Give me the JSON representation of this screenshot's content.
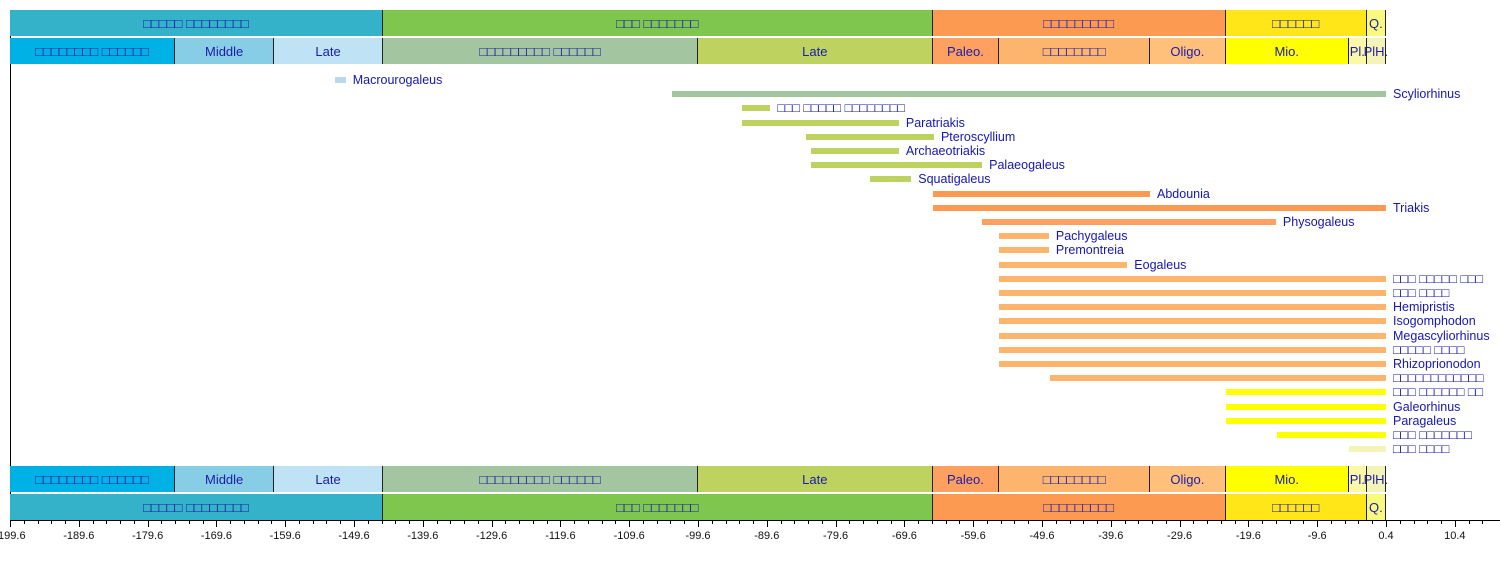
{
  "chart_data": {
    "type": "timeline",
    "title": "",
    "xlabel": "",
    "ylabel": "",
    "xlim": [
      -199.6,
      16.4
    ],
    "ticks": [
      -199.6,
      -189.6,
      -179.6,
      -169.6,
      -159.6,
      -149.6,
      -139.6,
      -129.6,
      -119.6,
      -109.6,
      -99.6,
      -89.6,
      -79.6,
      -69.6,
      -59.6,
      -49.6,
      -39.6,
      -29.6,
      -19.6,
      -9.6,
      0.4,
      10.4
    ],
    "periods": [
      {
        "label": "□□□□□ □□□□□□□□",
        "start": -199.6,
        "end": -145.4,
        "color": "#34b2c9"
      },
      {
        "label": "□□□ □□□□□□□",
        "start": -145.4,
        "end": -65.5,
        "color": "#7fc64e"
      },
      {
        "label": "□□□□□□□□□",
        "start": -65.5,
        "end": -22.9,
        "color": "#fd9a52"
      },
      {
        "label": "□□□□□□",
        "start": -22.9,
        "end": -2.4,
        "color": "#ffe619"
      },
      {
        "label": "Q.",
        "start": -2.4,
        "end": 0.4,
        "color": "#f9f97f"
      }
    ],
    "epochs": [
      {
        "label": "□□□□□□□□ □□□□□□",
        "start": -199.6,
        "end": -175.6,
        "color": "#00b1e6"
      },
      {
        "label": "Middle",
        "start": -175.6,
        "end": -161.2,
        "color": "#87cde6"
      },
      {
        "label": "Late",
        "start": -161.2,
        "end": -145.4,
        "color": "#bfe2f4"
      },
      {
        "label": "□□□□□□□□□ □□□□□□",
        "start": -145.4,
        "end": -99.6,
        "color": "#a3c6a1"
      },
      {
        "label": "Late",
        "start": -99.6,
        "end": -65.5,
        "color": "#bed260"
      },
      {
        "label": "Paleo.",
        "start": -65.5,
        "end": -55.8,
        "color": "#fda060"
      },
      {
        "label": "□□□□□□□□",
        "start": -55.8,
        "end": -33.9,
        "color": "#fdb46c"
      },
      {
        "label": "Oligo.",
        "start": -33.9,
        "end": -22.9,
        "color": "#fec07a"
      },
      {
        "label": "Mio.",
        "start": -22.9,
        "end": -5.0,
        "color": "#ffff00"
      },
      {
        "label": "Pl.",
        "start": -5.0,
        "end": -2.4,
        "color": "#fbf8a8"
      },
      {
        "label": "PlH.",
        "start": -2.4,
        "end": 0.4,
        "color": "#f4f4b8"
      }
    ],
    "taxa": [
      {
        "name": "Macrourogaleus",
        "start": -152.4,
        "end": -150.8,
        "color": "#bcd9ec"
      },
      {
        "name": "Scyliorhinus",
        "start": -103.4,
        "end": 0.4,
        "color": "#a3c6a1"
      },
      {
        "name": "□□□ □□□□□ □□□□□□□□",
        "start": -93.2,
        "end": -89.1,
        "color": "#bed260"
      },
      {
        "name": "Paratriakis",
        "start": -93.2,
        "end": -70.4,
        "color": "#bed260"
      },
      {
        "name": "Pteroscyllium",
        "start": -83.9,
        "end": -65.3,
        "color": "#bed260"
      },
      {
        "name": "Archaeotriakis",
        "start": -83.2,
        "end": -70.4,
        "color": "#bed260"
      },
      {
        "name": "Palaeogaleus",
        "start": -83.2,
        "end": -58.3,
        "color": "#bed260"
      },
      {
        "name": "Squatigaleus",
        "start": -74.6,
        "end": -68.6,
        "color": "#bed260"
      },
      {
        "name": "Abdounia",
        "start": -65.5,
        "end": -33.9,
        "color": "#fd9a52"
      },
      {
        "name": "Triakis",
        "start": -65.5,
        "end": 0.4,
        "color": "#fd9a52"
      },
      {
        "name": "Physogaleus",
        "start": -58.3,
        "end": -15.6,
        "color": "#fda060"
      },
      {
        "name": "Pachygaleus",
        "start": -55.8,
        "end": -48.6,
        "color": "#fdb46c"
      },
      {
        "name": "Premontreia",
        "start": -55.8,
        "end": -48.6,
        "color": "#fdb46c"
      },
      {
        "name": "Eogaleus",
        "start": -55.8,
        "end": -37.2,
        "color": "#fdb46c"
      },
      {
        "name": "□□□ □□□□□ □□□",
        "start": -55.8,
        "end": 0.4,
        "color": "#fdb46c"
      },
      {
        "name": "□□□ □□□□",
        "start": -55.8,
        "end": 0.4,
        "color": "#fdb46c"
      },
      {
        "name": "Hemipristis",
        "start": -55.8,
        "end": 0.4,
        "color": "#fdb46c"
      },
      {
        "name": "Isogomphodon",
        "start": -55.8,
        "end": 0.4,
        "color": "#fdb46c"
      },
      {
        "name": "Megascyliorhinus",
        "start": -55.8,
        "end": 0.4,
        "color": "#fdb46c"
      },
      {
        "name": "□□□□□ □□□□",
        "start": -55.8,
        "end": 0.4,
        "color": "#fdb46c"
      },
      {
        "name": "Rhizoprionodon",
        "start": -55.8,
        "end": 0.4,
        "color": "#fdb46c"
      },
      {
        "name": "□□□□□□□□□□□□",
        "start": -48.4,
        "end": 0.4,
        "color": "#fdb46c"
      },
      {
        "name": "□□□ □□□□□□ □□",
        "start": -22.9,
        "end": 0.4,
        "color": "#ffff00"
      },
      {
        "name": "Galeorhinus",
        "start": -22.9,
        "end": 0.4,
        "color": "#ffff00"
      },
      {
        "name": "Paragaleus",
        "start": -22.9,
        "end": 0.4,
        "color": "#ffff00"
      },
      {
        "name": "□□□ □□□□□□□",
        "start": -15.4,
        "end": 0.4,
        "color": "#ffff00"
      },
      {
        "name": "□□□ □□□□",
        "start": -5.0,
        "end": 0.4,
        "color": "#f4f4b8"
      }
    ]
  }
}
